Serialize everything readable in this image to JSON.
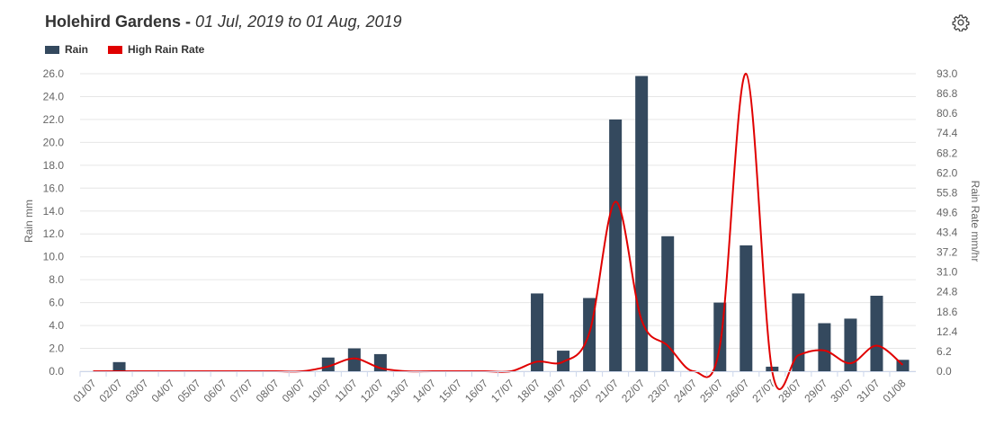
{
  "header": {
    "station": "Holehird Gardens",
    "separator": " - ",
    "date_range": "01 Jul, 2019 to 01 Aug, 2019"
  },
  "legend": {
    "rain_label": "Rain",
    "rate_label": "High Rain Rate"
  },
  "colors": {
    "rain": "#34495e",
    "rate": "#e00000"
  },
  "chart_data": {
    "type": "bar",
    "categories": [
      "01/07",
      "02/07",
      "03/07",
      "04/07",
      "05/07",
      "06/07",
      "07/07",
      "08/07",
      "09/07",
      "10/07",
      "11/07",
      "12/07",
      "13/07",
      "14/07",
      "15/07",
      "16/07",
      "17/07",
      "18/07",
      "19/07",
      "20/07",
      "21/07",
      "22/07",
      "23/07",
      "24/07",
      "25/07",
      "26/07",
      "27/07",
      "28/07",
      "29/07",
      "30/07",
      "31/07",
      "01/08"
    ],
    "series": [
      {
        "name": "Rain",
        "type": "bar",
        "axis": "left",
        "values": [
          0,
          0.8,
          0,
          0,
          0,
          0,
          0,
          0,
          0,
          1.2,
          2.0,
          1.5,
          0,
          0,
          0,
          0,
          0,
          6.8,
          1.8,
          6.4,
          22.0,
          25.8,
          11.8,
          0,
          6.0,
          11.0,
          0.4,
          6.8,
          4.2,
          4.6,
          6.6,
          1.0
        ]
      },
      {
        "name": "High Rain Rate",
        "type": "line",
        "axis": "right",
        "values": [
          0,
          0,
          0,
          0,
          0,
          0,
          0,
          0,
          0,
          1.5,
          4.0,
          1.0,
          0,
          0,
          0,
          0,
          0,
          3.0,
          3.0,
          12.0,
          53.0,
          16.0,
          8.0,
          0,
          8.0,
          93.0,
          0,
          5.0,
          6.5,
          2.5,
          8.0,
          2.0
        ]
      }
    ],
    "ylabel": "Rain mm",
    "y2label": "Rain Rate mm/hr",
    "ylim": [
      0,
      26
    ],
    "y2lim": [
      0,
      93
    ],
    "yticks": [
      "0.0",
      "2.0",
      "4.0",
      "6.0",
      "8.0",
      "10.0",
      "12.0",
      "14.0",
      "16.0",
      "18.0",
      "20.0",
      "22.0",
      "24.0",
      "26.0"
    ],
    "y2ticks": [
      "0.0",
      "6.2",
      "12.4",
      "18.6",
      "24.8",
      "31.0",
      "37.2",
      "43.4",
      "49.6",
      "55.8",
      "62.0",
      "68.2",
      "74.4",
      "80.6",
      "86.8",
      "93.0"
    ],
    "grid": true,
    "legend_position": "top-left"
  }
}
